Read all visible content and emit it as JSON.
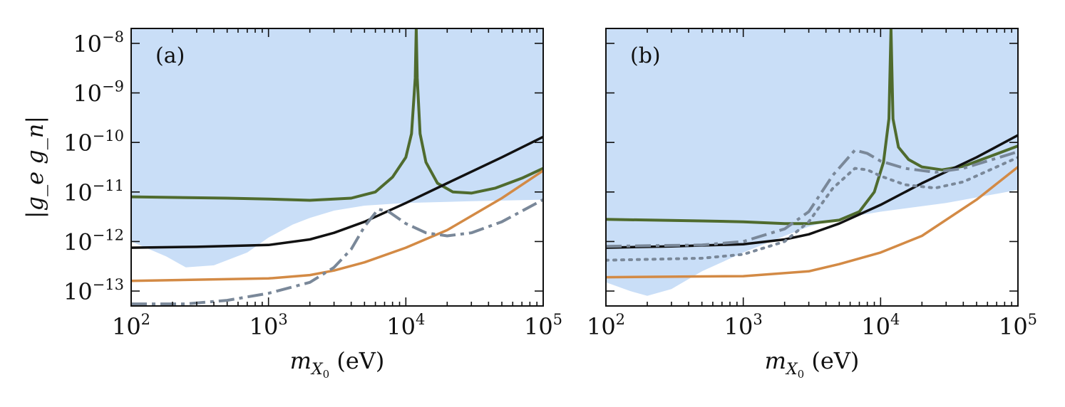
{
  "chart_data": [
    {
      "type": "line",
      "panel_label": "(a)",
      "xlabel": {
        "symbol": "m",
        "subscript": "X",
        "subsubscript": "0",
        "unit": "(eV)"
      },
      "ylabel": "|g_e g_n|",
      "xscale": "log",
      "yscale": "log",
      "xlim": [
        100,
        100000
      ],
      "ylim": [
        5e-14,
        2e-08
      ],
      "xticks": [
        {
          "base": "10",
          "exp": "2",
          "value": 100
        },
        {
          "base": "10",
          "exp": "3",
          "value": 1000
        },
        {
          "base": "10",
          "exp": "4",
          "value": 10000
        },
        {
          "base": "10",
          "exp": "5",
          "value": 100000
        }
      ],
      "yticks": [
        {
          "base": "10",
          "exp": "−13",
          "value": 1e-13
        },
        {
          "base": "10",
          "exp": "−12",
          "value": 1e-12
        },
        {
          "base": "10",
          "exp": "−11",
          "value": 1e-11
        },
        {
          "base": "10",
          "exp": "−10",
          "value": 1e-10
        },
        {
          "base": "10",
          "exp": "−9",
          "value": 1e-09
        },
        {
          "base": "10",
          "exp": "−8",
          "value": 1e-08
        }
      ],
      "excluded_region": {
        "color": "#c9def7",
        "lower_boundary": [
          [
            100,
            1e-12
          ],
          [
            180,
            5e-13
          ],
          [
            250,
            3e-13
          ],
          [
            400,
            3.3e-13
          ],
          [
            700,
            6e-13
          ],
          [
            1000,
            1.2e-12
          ],
          [
            1500,
            2.2e-12
          ],
          [
            2000,
            3e-12
          ],
          [
            3000,
            4.2e-12
          ],
          [
            5000,
            5.3e-12
          ],
          [
            10000,
            6e-12
          ],
          [
            30000,
            6.5e-12
          ],
          [
            100000,
            7e-12
          ]
        ]
      },
      "series": [
        {
          "name": "green",
          "color": "#4f6b2e",
          "style": "solid",
          "width": 4,
          "points": [
            [
              100,
              8e-12
            ],
            [
              500,
              7.5e-12
            ],
            [
              1000,
              7.2e-12
            ],
            [
              2000,
              6.8e-12
            ],
            [
              4000,
              7.5e-12
            ],
            [
              6000,
              1e-11
            ],
            [
              8000,
              2e-11
            ],
            [
              10000,
              5e-11
            ],
            [
              11000,
              1.5e-10
            ],
            [
              11700,
              2e-09
            ],
            [
              11900,
              2e-08
            ],
            [
              12100,
              2e-09
            ],
            [
              12700,
              1.5e-10
            ],
            [
              14000,
              4e-11
            ],
            [
              17000,
              1.5e-11
            ],
            [
              22000,
              1e-11
            ],
            [
              30000,
              9.5e-12
            ],
            [
              45000,
              1.2e-11
            ],
            [
              70000,
              1.9e-11
            ],
            [
              100000,
              3e-11
            ]
          ]
        },
        {
          "name": "black",
          "color": "#111111",
          "style": "solid",
          "width": 3.5,
          "points": [
            [
              100,
              7.5e-13
            ],
            [
              300,
              7.8e-13
            ],
            [
              1000,
              8.5e-13
            ],
            [
              2000,
              1.1e-12
            ],
            [
              3000,
              1.5e-12
            ],
            [
              5000,
              2.5e-12
            ],
            [
              10000,
              6e-12
            ],
            [
              20000,
              1.5e-11
            ],
            [
              50000,
              5e-11
            ],
            [
              100000,
              1.3e-10
            ]
          ]
        },
        {
          "name": "orange",
          "color": "#d38a45",
          "style": "solid",
          "width": 3.5,
          "points": [
            [
              100,
              1.6e-13
            ],
            [
              1000,
              1.8e-13
            ],
            [
              2000,
              2.1e-13
            ],
            [
              3000,
              2.6e-13
            ],
            [
              5000,
              3.8e-13
            ],
            [
              10000,
              7.5e-13
            ],
            [
              20000,
              1.7e-12
            ],
            [
              50000,
              7.5e-12
            ],
            [
              100000,
              2.7e-11
            ]
          ]
        },
        {
          "name": "gray-dashdot",
          "color": "#7a8899",
          "style": "dashdot",
          "width": 4,
          "points": [
            [
              100,
              5.5e-14
            ],
            [
              250,
              5.5e-14
            ],
            [
              500,
              6.5e-14
            ],
            [
              1000,
              9e-14
            ],
            [
              2000,
              1.5e-13
            ],
            [
              3000,
              3e-13
            ],
            [
              4000,
              7e-13
            ],
            [
              5000,
              2e-12
            ],
            [
              6300,
              4.5e-12
            ],
            [
              7500,
              4e-12
            ],
            [
              10000,
              2.3e-12
            ],
            [
              14000,
              1.5e-12
            ],
            [
              20000,
              1.3e-12
            ],
            [
              30000,
              1.5e-12
            ],
            [
              50000,
              2.5e-12
            ],
            [
              100000,
              7e-12
            ]
          ]
        }
      ]
    },
    {
      "type": "line",
      "panel_label": "(b)",
      "xlabel": {
        "symbol": "m",
        "subscript": "X",
        "subsubscript": "0",
        "unit": "(eV)"
      },
      "ylabel": "",
      "xscale": "log",
      "yscale": "log",
      "xlim": [
        100,
        100000
      ],
      "ylim": [
        5e-14,
        2e-08
      ],
      "xticks": [
        {
          "base": "10",
          "exp": "2",
          "value": 100
        },
        {
          "base": "10",
          "exp": "3",
          "value": 1000
        },
        {
          "base": "10",
          "exp": "4",
          "value": 10000
        },
        {
          "base": "10",
          "exp": "5",
          "value": 100000
        }
      ],
      "yticks": [
        {
          "value": 1e-13
        },
        {
          "value": 1e-12
        },
        {
          "value": 1e-11
        },
        {
          "value": 1e-10
        },
        {
          "value": 1e-09
        },
        {
          "value": 1e-08
        }
      ],
      "excluded_region": {
        "color": "#c9def7",
        "lower_boundary": [
          [
            100,
            1.5e-13
          ],
          [
            150,
            1e-13
          ],
          [
            200,
            8e-14
          ],
          [
            300,
            1.1e-13
          ],
          [
            500,
            2.5e-13
          ],
          [
            1000,
            6e-13
          ],
          [
            2000,
            1.3e-12
          ],
          [
            3000,
            2e-12
          ],
          [
            5000,
            2.9e-12
          ],
          [
            10000,
            4e-12
          ],
          [
            30000,
            6e-12
          ],
          [
            100000,
            1.1e-11
          ]
        ]
      },
      "series": [
        {
          "name": "green",
          "color": "#4f6b2e",
          "style": "solid",
          "width": 4,
          "points": [
            [
              100,
              2.8e-12
            ],
            [
              500,
              2.6e-12
            ],
            [
              1000,
              2.5e-12
            ],
            [
              2000,
              2.3e-12
            ],
            [
              3000,
              2.3e-12
            ],
            [
              5000,
              2.7e-12
            ],
            [
              7000,
              4e-12
            ],
            [
              9000,
              1e-11
            ],
            [
              10500,
              4e-11
            ],
            [
              11500,
              3e-10
            ],
            [
              11900,
              2e-08
            ],
            [
              12300,
              3e-10
            ],
            [
              13500,
              8e-11
            ],
            [
              16000,
              4.5e-11
            ],
            [
              20000,
              3.2e-11
            ],
            [
              28000,
              2.8e-11
            ],
            [
              40000,
              3.3e-11
            ],
            [
              60000,
              5e-11
            ],
            [
              100000,
              8.5e-11
            ]
          ]
        },
        {
          "name": "black",
          "color": "#111111",
          "style": "solid",
          "width": 3.5,
          "points": [
            [
              100,
              7.5e-13
            ],
            [
              300,
              8e-13
            ],
            [
              1000,
              8.8e-13
            ],
            [
              2000,
              1.1e-12
            ],
            [
              3000,
              1.4e-12
            ],
            [
              5000,
              2.3e-12
            ],
            [
              10000,
              5.5e-12
            ],
            [
              20000,
              1.5e-11
            ],
            [
              50000,
              5e-11
            ],
            [
              100000,
              1.4e-10
            ]
          ]
        },
        {
          "name": "orange",
          "color": "#d38a45",
          "style": "solid",
          "width": 3.5,
          "points": [
            [
              100,
              1.9e-13
            ],
            [
              1000,
              2e-13
            ],
            [
              3000,
              2.5e-13
            ],
            [
              5000,
              3.5e-13
            ],
            [
              10000,
              6e-13
            ],
            [
              20000,
              1.3e-12
            ],
            [
              50000,
              7e-12
            ],
            [
              100000,
              3.2e-11
            ]
          ]
        },
        {
          "name": "gray-dashdot",
          "color": "#7a8899",
          "style": "dashdot",
          "width": 4,
          "points": [
            [
              100,
              8e-13
            ],
            [
              500,
              8.5e-13
            ],
            [
              1000,
              1e-12
            ],
            [
              2000,
              1.8e-12
            ],
            [
              3000,
              4e-12
            ],
            [
              4500,
              2.2e-11
            ],
            [
              6500,
              7e-11
            ],
            [
              8000,
              6e-11
            ],
            [
              10000,
              4.2e-11
            ],
            [
              15000,
              3e-11
            ],
            [
              25000,
              2.5e-11
            ],
            [
              40000,
              3e-11
            ],
            [
              100000,
              6.5e-11
            ]
          ]
        },
        {
          "name": "gray-dotted",
          "color": "#7a8899",
          "style": "dotted",
          "width": 4,
          "points": [
            [
              100,
              4.2e-13
            ],
            [
              500,
              4.6e-13
            ],
            [
              1000,
              5.5e-13
            ],
            [
              2000,
              1e-12
            ],
            [
              3000,
              2.5e-12
            ],
            [
              4500,
              1.2e-11
            ],
            [
              6500,
              3e-11
            ],
            [
              8000,
              2.8e-11
            ],
            [
              10000,
              2.1e-11
            ],
            [
              15000,
              1.4e-11
            ],
            [
              25000,
              1.2e-11
            ],
            [
              40000,
              1.6e-11
            ],
            [
              100000,
              5e-11
            ]
          ]
        }
      ]
    }
  ]
}
